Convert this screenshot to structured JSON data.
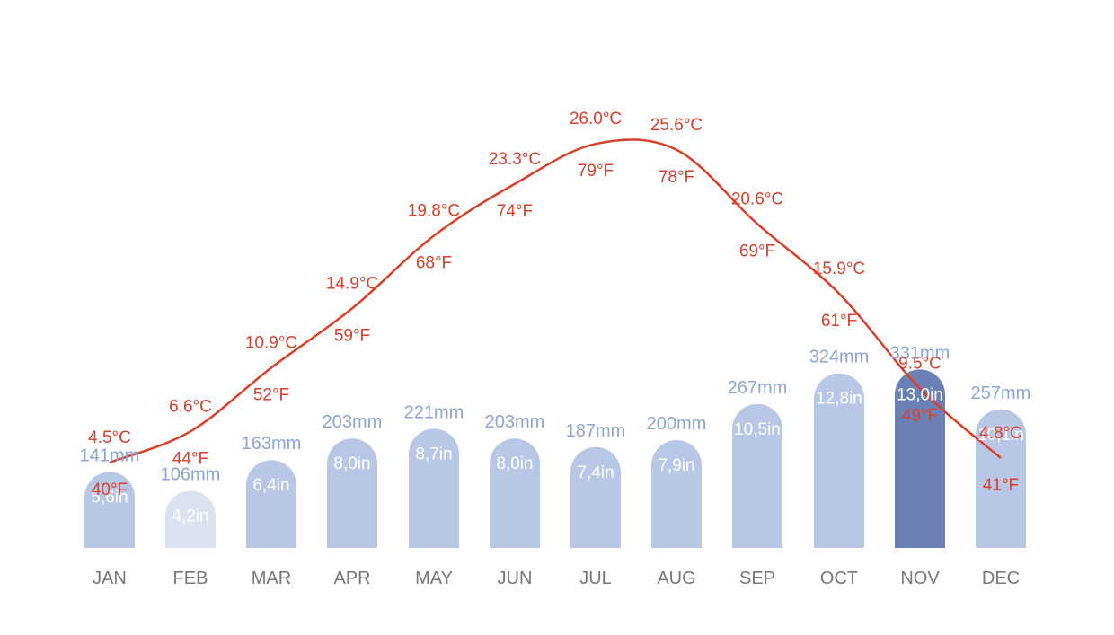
{
  "chart_data": {
    "type": "bar+line",
    "categories": [
      "JAN",
      "FEB",
      "MAR",
      "APR",
      "MAY",
      "JUN",
      "JUL",
      "AUG",
      "SEP",
      "OCT",
      "NOV",
      "DEC"
    ],
    "precip_mm": [
      141,
      106,
      163,
      203,
      221,
      203,
      187,
      200,
      267,
      324,
      331,
      257
    ],
    "precip_mm_labels": [
      "141mm",
      "106mm",
      "163mm",
      "203mm",
      "221mm",
      "203mm",
      "187mm",
      "200mm",
      "267mm",
      "324mm",
      "331mm",
      "257mm"
    ],
    "precip_in_labels": [
      "5,6in",
      "4,2in",
      "6,4in",
      "8,0in",
      "8,7in",
      "8,0in",
      "7,4in",
      "7,9in",
      "10,5in",
      "12,8in",
      "13,0in",
      "10,1in"
    ],
    "temp_c": [
      4.5,
      6.6,
      10.9,
      14.9,
      19.8,
      23.3,
      26.0,
      25.6,
      20.6,
      15.9,
      9.5,
      4.8
    ],
    "temp_c_labels": [
      "4.5°C",
      "6.6°C",
      "10.9°C",
      "14.9°C",
      "19.8°C",
      "23.3°C",
      "26.0°C",
      "25.6°C",
      "20.6°C",
      "15.9°C",
      "9.5°C",
      "4.8°C"
    ],
    "temp_f_labels": [
      "40°F",
      "44°F",
      "52°F",
      "59°F",
      "68°F",
      "74°F",
      "79°F",
      "78°F",
      "69°F",
      "61°F",
      "49°F",
      "41°F"
    ],
    "colors": {
      "bar_default": "#b9c7e6",
      "bar_lowest": "#dbe1ef",
      "bar_highest": "#6b80b4",
      "mm_label": "#8ea4d6",
      "in_label": "#ffffff",
      "temp_line": "#d8402a",
      "month_label": "#777777"
    }
  }
}
